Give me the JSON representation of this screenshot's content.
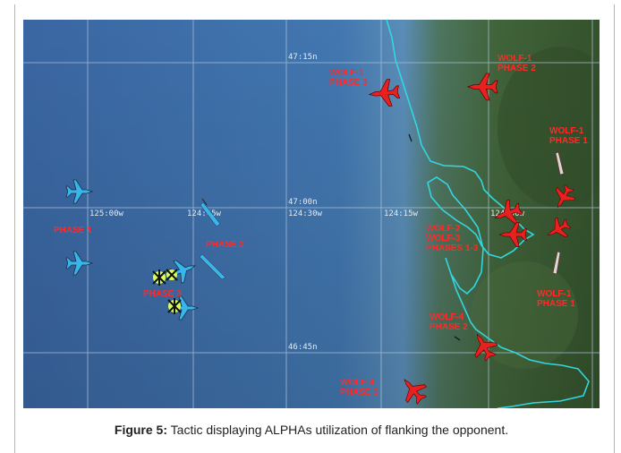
{
  "caption": {
    "figure_label": "Figure 5:",
    "text": "Tactic displaying ALPHAs utilization of flanking the opponent."
  },
  "grid": {
    "latitudes": [
      "47:15n",
      "47:00n",
      "46:45n"
    ],
    "longitudes": [
      "125:00w",
      "124:45w",
      "124:30w",
      "124:15w",
      "124:00w"
    ]
  },
  "labels": {
    "blue_phase_1": "PHASE 1",
    "blue_phase_2": "PHASE 2",
    "blue_phase_3": "PHASE 3",
    "wolf1_phase3": [
      "WOLF-1",
      "PHASE 3"
    ],
    "wolf1_phase2": [
      "WOLF-1",
      "PHASE 2"
    ],
    "wolf1_phase1_top": [
      "WOLF-1",
      "PHASE 1"
    ],
    "wolf23": [
      "WOLF-2",
      "WOLF-3",
      "PHASES 1-3"
    ],
    "wolf1_phase1_bottom": [
      "WOLF-1",
      "PHASE 1"
    ],
    "wolf4_phase2": [
      "WOLF-4",
      "PHASE 2"
    ],
    "wolf4_phase3": [
      "WOLF-4",
      "PHASE 3"
    ]
  },
  "colors": {
    "sea": "#3f6fa8",
    "land": "#3f5f34",
    "coast": "#33d6e0",
    "grid": "#9fb5cc",
    "red_aircraft": "#e82020",
    "blue_aircraft": "#38b6ec",
    "label": "#ff2a2a"
  },
  "icons": [
    "fighter-jet-icon",
    "missile-icon",
    "kill-marker-icon"
  ]
}
